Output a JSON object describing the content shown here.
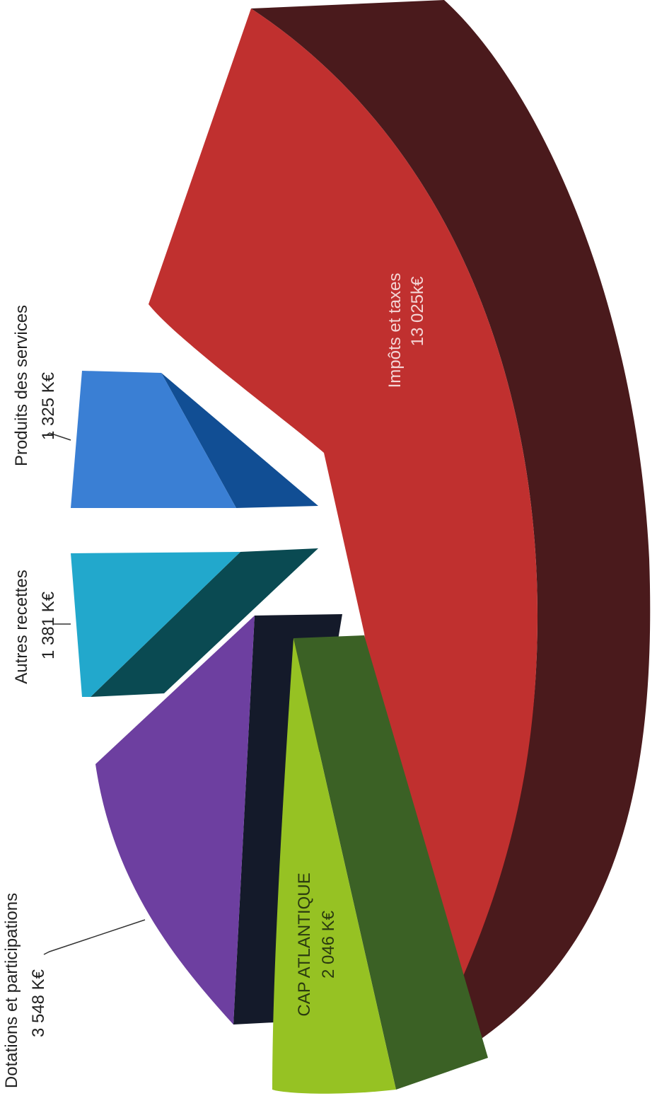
{
  "chart_data": {
    "type": "pie",
    "title": "",
    "slices": [
      {
        "name": "Impôts et taxes",
        "label": "Impôts et taxes",
        "value_label": "13 025k€",
        "value": 13025,
        "color": "#c0302f",
        "side_color": "#4a1a1c"
      },
      {
        "name": "Produits des services",
        "label": "Produits des services",
        "value_label": "1 325 K€",
        "value": 1325,
        "color": "#3a7fd4",
        "side_color": "#114e94"
      },
      {
        "name": "Autres recettes",
        "label": "Autres recettes",
        "value_label": "1 381 K€",
        "value": 1381,
        "color": "#22a8cc",
        "side_color": "#0a4a52"
      },
      {
        "name": "Dotations et participations",
        "label": "Dotations et participations",
        "value_label": "3 548 K€",
        "value": 3548,
        "color": "#6d3fa0",
        "side_color": "#141a2a"
      },
      {
        "name": "CAP ATLANTIQUE",
        "label": "CAP ATLANTIQUE",
        "value_label": "2 046 K€",
        "value": 2046,
        "color": "#96c223",
        "side_color": "#3b6125"
      }
    ],
    "legend": "none",
    "orientation": "rotated-90-ccw",
    "style": "3d-exploded"
  }
}
